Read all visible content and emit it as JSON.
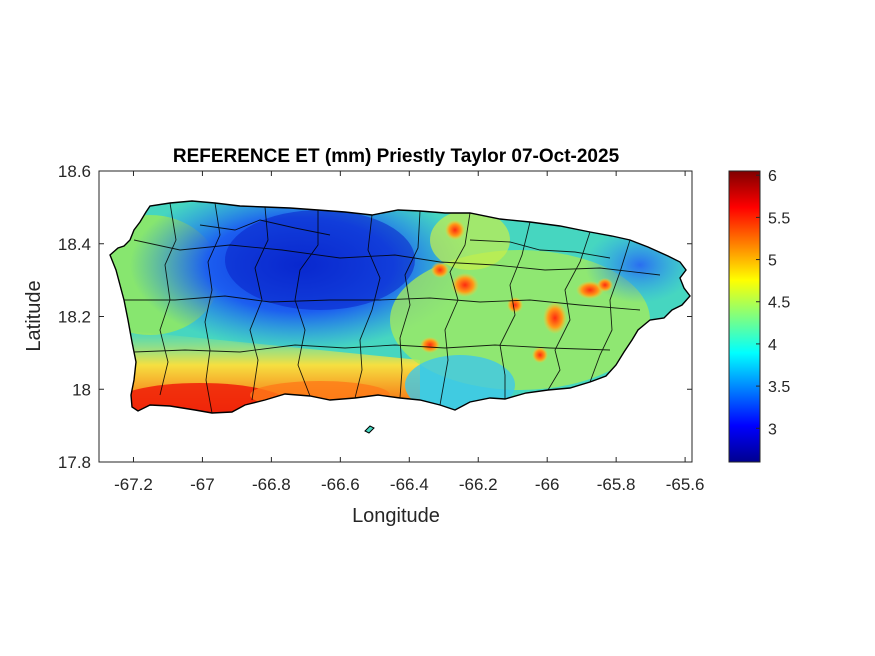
{
  "map": {
    "title": "REFERENCE ET (mm) Priestly Taylor 07-Oct-2025",
    "xlabel": "Longitude",
    "ylabel": "Latitude",
    "xlim": [
      -67.3,
      -65.58
    ],
    "ylim": [
      17.8,
      18.6
    ],
    "xticks": [
      -67.2,
      -67,
      -66.8,
      -66.6,
      -66.4,
      -66.2,
      -66,
      -65.8,
      -65.6
    ],
    "yticks": [
      17.8,
      18,
      18.2,
      18.4,
      18.6
    ],
    "region": "Puerto Rico",
    "colormap": "jet",
    "outline_color": "#000000"
  },
  "colorbar": {
    "range": [
      2.6,
      6.05
    ],
    "ticks": [
      3,
      3.5,
      4,
      4.5,
      5,
      5.5,
      6
    ],
    "tick_labels": [
      "3",
      "3.5",
      "4",
      "4.5",
      "5",
      "5.5",
      "6"
    ]
  }
}
